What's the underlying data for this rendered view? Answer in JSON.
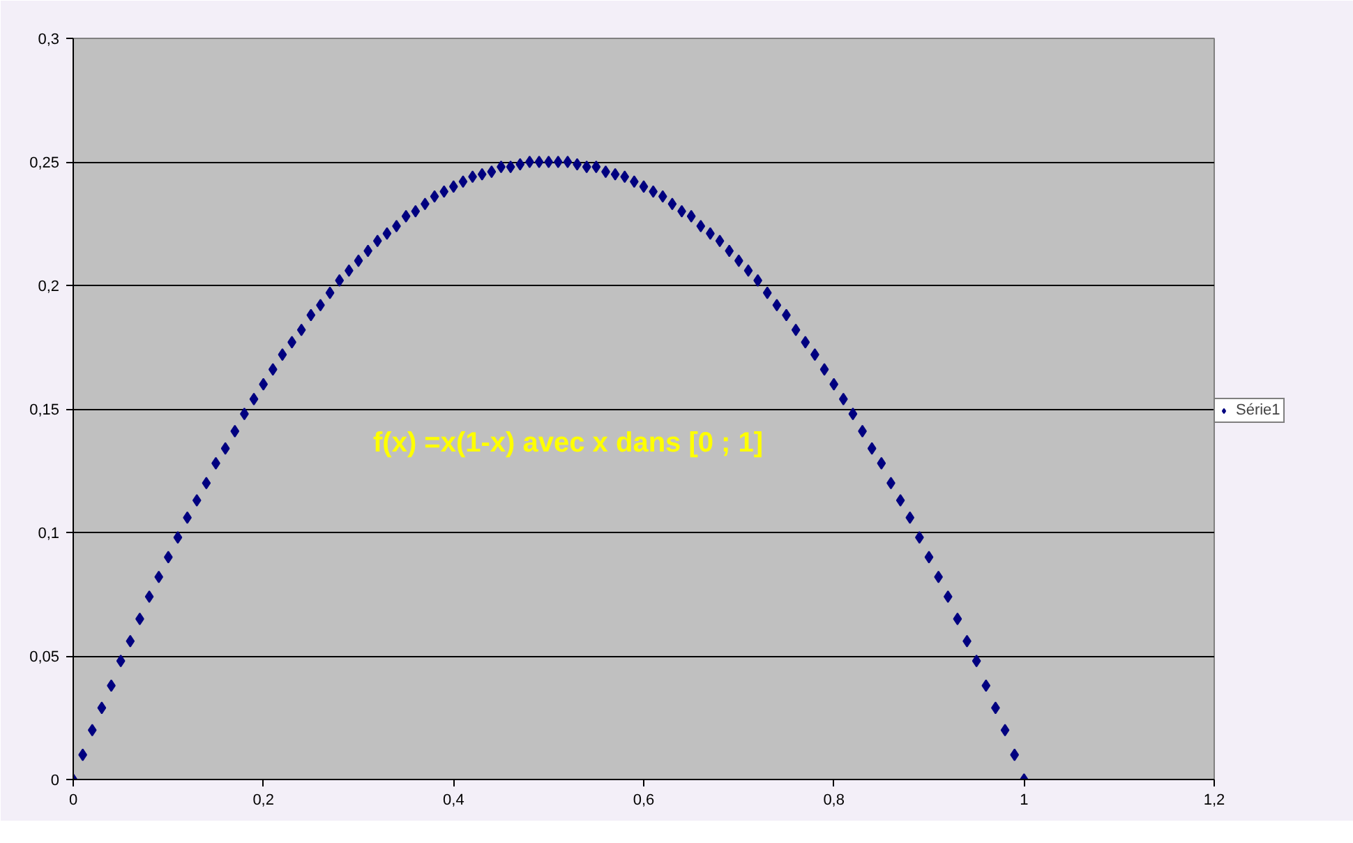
{
  "chart_data": {
    "type": "scatter",
    "marker": "diamond",
    "grid": "y",
    "legend": "right",
    "annotations": [
      "f(x) =x(1-x) avec x dans [0 ; 1]"
    ],
    "xlim": [
      0,
      1.2
    ],
    "ylim": [
      0,
      0.3
    ],
    "xticks": [
      0,
      {
        "value": 0.2,
        "label": "0,2"
      },
      {
        "value": 0.4,
        "label": "0,4"
      },
      {
        "value": 0.6,
        "label": "0,6"
      },
      {
        "value": 0.8,
        "label": "0,8"
      },
      1,
      {
        "value": 1.2,
        "label": "1,2"
      }
    ],
    "yticks": [
      0,
      {
        "value": 0.05,
        "label": "0,05"
      },
      {
        "value": 0.1,
        "label": "0,1"
      },
      {
        "value": 0.15,
        "label": "0,15"
      },
      {
        "value": 0.2,
        "label": "0,2"
      },
      {
        "value": 0.25,
        "label": "0,25"
      },
      {
        "value": 0.3,
        "label": "0,3"
      }
    ],
    "x": [
      0,
      0.01,
      0.02,
      0.03,
      0.04,
      0.05,
      0.06,
      0.07,
      0.08,
      0.09,
      0.1,
      0.11,
      0.12,
      0.13,
      0.14,
      0.15,
      0.16,
      0.17,
      0.18,
      0.19,
      0.2,
      0.21,
      0.22,
      0.23,
      0.24,
      0.25,
      0.26,
      0.27,
      0.28,
      0.29,
      0.3,
      0.31,
      0.32,
      0.33,
      0.34,
      0.35,
      0.36,
      0.37,
      0.38,
      0.39,
      0.4,
      0.41,
      0.42,
      0.43,
      0.44,
      0.45,
      0.46,
      0.47,
      0.48,
      0.49,
      0.5,
      0.51,
      0.52,
      0.53,
      0.54,
      0.55,
      0.56,
      0.57,
      0.58,
      0.59,
      0.6,
      0.61,
      0.62,
      0.63,
      0.64,
      0.65,
      0.66,
      0.67,
      0.68,
      0.69,
      0.7,
      0.71,
      0.72,
      0.73,
      0.74,
      0.75,
      0.76,
      0.77,
      0.78,
      0.79,
      0.8,
      0.81,
      0.82,
      0.83,
      0.84,
      0.85,
      0.86,
      0.87,
      0.88,
      0.89,
      0.9,
      0.91,
      0.92,
      0.93,
      0.94,
      0.95,
      0.96,
      0.97,
      0.98,
      0.99,
      1
    ],
    "series": [
      {
        "name": "Série1",
        "color": "#000080",
        "values": [
          0,
          0.01,
          0.02,
          0.029,
          0.038,
          0.048,
          0.056,
          0.065,
          0.074,
          0.082,
          0.09,
          0.098,
          0.106,
          0.113,
          0.12,
          0.128,
          0.134,
          0.141,
          0.148,
          0.154,
          0.16,
          0.166,
          0.172,
          0.177,
          0.182,
          0.188,
          0.192,
          0.197,
          0.202,
          0.206,
          0.21,
          0.214,
          0.218,
          0.221,
          0.224,
          0.228,
          0.23,
          0.233,
          0.236,
          0.238,
          0.24,
          0.242,
          0.244,
          0.245,
          0.246,
          0.248,
          0.248,
          0.249,
          0.25,
          0.25,
          0.25,
          0.25,
          0.25,
          0.249,
          0.248,
          0.248,
          0.246,
          0.245,
          0.244,
          0.242,
          0.24,
          0.238,
          0.236,
          0.233,
          0.23,
          0.228,
          0.224,
          0.221,
          0.218,
          0.214,
          0.21,
          0.206,
          0.202,
          0.197,
          0.192,
          0.188,
          0.182,
          0.177,
          0.172,
          0.166,
          0.16,
          0.154,
          0.148,
          0.141,
          0.134,
          0.128,
          0.12,
          0.113,
          0.106,
          0.098,
          0.09,
          0.082,
          0.074,
          0.065,
          0.056,
          0.048,
          0.038,
          0.029,
          0.02,
          0.01,
          0
        ]
      }
    ]
  }
}
